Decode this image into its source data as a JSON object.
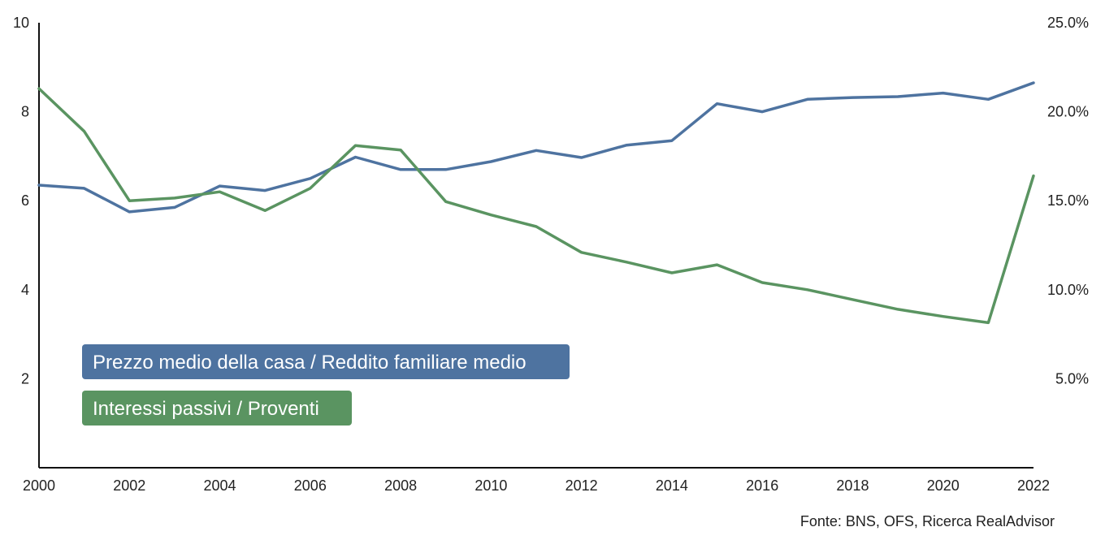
{
  "chart_data": {
    "type": "line",
    "x": [
      2000,
      2001,
      2002,
      2003,
      2004,
      2005,
      2006,
      2007,
      2008,
      2009,
      2010,
      2011,
      2012,
      2013,
      2014,
      2015,
      2016,
      2017,
      2018,
      2019,
      2020,
      2021,
      2022
    ],
    "x_ticks": [
      "2000",
      "2002",
      "2004",
      "2006",
      "2008",
      "2010",
      "2012",
      "2014",
      "2016",
      "2018",
      "2020",
      "2022"
    ],
    "y_left_ticks": [
      "2",
      "4",
      "6",
      "8",
      "10"
    ],
    "y_left_lim": [
      0,
      10
    ],
    "y_right_ticks": [
      "5.0%",
      "10.0%",
      "15.0%",
      "20.0%",
      "25.0%"
    ],
    "y_right_lim": [
      0,
      25
    ],
    "series": [
      {
        "name": "Prezzo medio della casa / Reddito familiare medio",
        "axis": "left",
        "color": "#4e73a0",
        "values": [
          6.35,
          6.28,
          5.75,
          5.85,
          6.33,
          6.23,
          6.5,
          6.98,
          6.7,
          6.7,
          6.88,
          7.13,
          6.97,
          7.25,
          7.35,
          8.18,
          8.0,
          8.28,
          8.32,
          8.34,
          8.42,
          8.28,
          8.65
        ]
      },
      {
        "name": "Interessi passivi / Proventi",
        "axis": "right",
        "color": "#5a9461",
        "values": [
          21.3,
          18.9,
          15.0,
          15.15,
          15.5,
          14.45,
          15.7,
          18.1,
          17.85,
          14.95,
          14.2,
          13.55,
          12.1,
          11.55,
          10.95,
          11.4,
          10.4,
          10.0,
          9.45,
          8.9,
          8.5,
          8.15,
          16.4
        ]
      }
    ],
    "legend": "bottom-left",
    "grid": false,
    "source": "Fonte: BNS, OFS, Ricerca RealAdvisor"
  }
}
